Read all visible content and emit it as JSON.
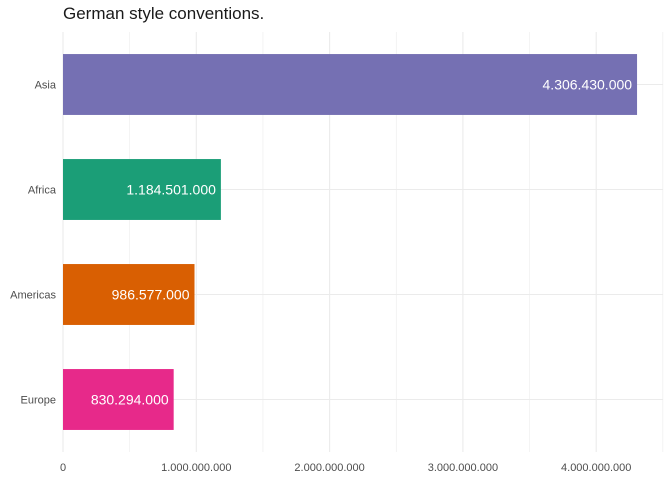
{
  "chart_data": {
    "type": "bar",
    "orientation": "horizontal",
    "title": "German style conventions.",
    "xlabel": "",
    "ylabel": "",
    "categories": [
      "Asia",
      "Africa",
      "Americas",
      "Europe"
    ],
    "values": [
      4306430000,
      1184501000,
      986577000,
      830294000
    ],
    "value_labels": [
      "4.306.430.000",
      "1.184.501.000",
      "986.577.000",
      "830.294.000"
    ],
    "colors": [
      "#7570B3",
      "#1B9E77",
      "#D95F02",
      "#E7298A"
    ],
    "x_ticks": [
      0,
      1000000000,
      2000000000,
      3000000000,
      4000000000
    ],
    "x_tick_labels": [
      "0",
      "1.000.000.000",
      "2.000.000.000",
      "3.000.000.000",
      "4.000.000.000"
    ],
    "xlim": [
      0,
      4500000000
    ],
    "grid": true,
    "legend": "none"
  }
}
